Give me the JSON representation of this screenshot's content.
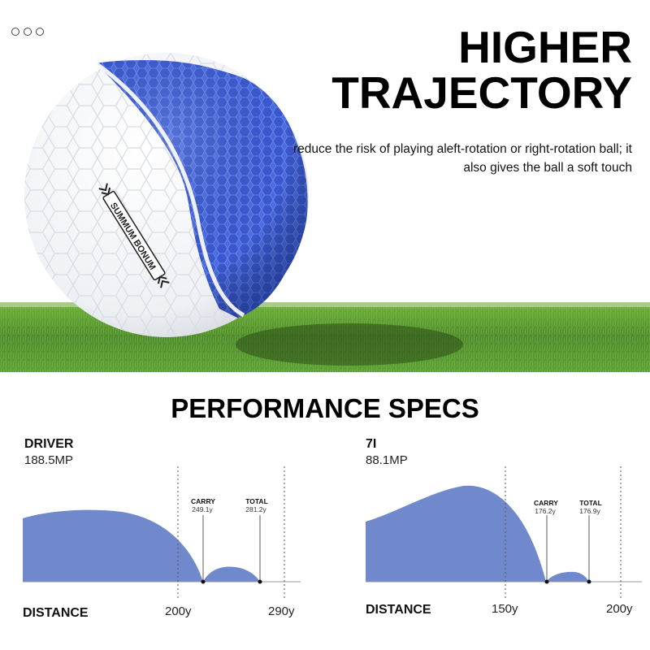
{
  "hero": {
    "title_line1": "HIGHER",
    "title_line2": "TRAJECTORY",
    "description": "reduce the risk of playing aleft-rotation or right-rotation ball; it also gives the ball a soft touch",
    "ball_brand": "SUMMUM BONUM",
    "colors": {
      "ball_core": "#3f5fd8",
      "ball_shell": "#f4f5f7",
      "grass": "#4e8a2c"
    }
  },
  "menu_icon": "three-dots-icon",
  "specs": {
    "title": "PERFORMANCE SPECS",
    "driver": {
      "name": "DRIVER",
      "speed": "188.5MP",
      "carry_label": "CARRY",
      "carry_value": "249.1y",
      "total_label": "TOTAL",
      "total_value": "281.2y",
      "distance_label": "DISTANCE",
      "tick1": "200y",
      "tick2": "290y"
    },
    "iron7": {
      "name": "7I",
      "speed": "88.1MP",
      "carry_label": "CARRY",
      "carry_value": "176.2y",
      "total_label": "TOTAL",
      "total_value": "176.9y",
      "distance_label": "DISTANCE",
      "tick1": "150y",
      "tick2": "200y"
    },
    "colors": {
      "trajectory_fill": "#7088cc",
      "baseline": "#999999"
    }
  }
}
